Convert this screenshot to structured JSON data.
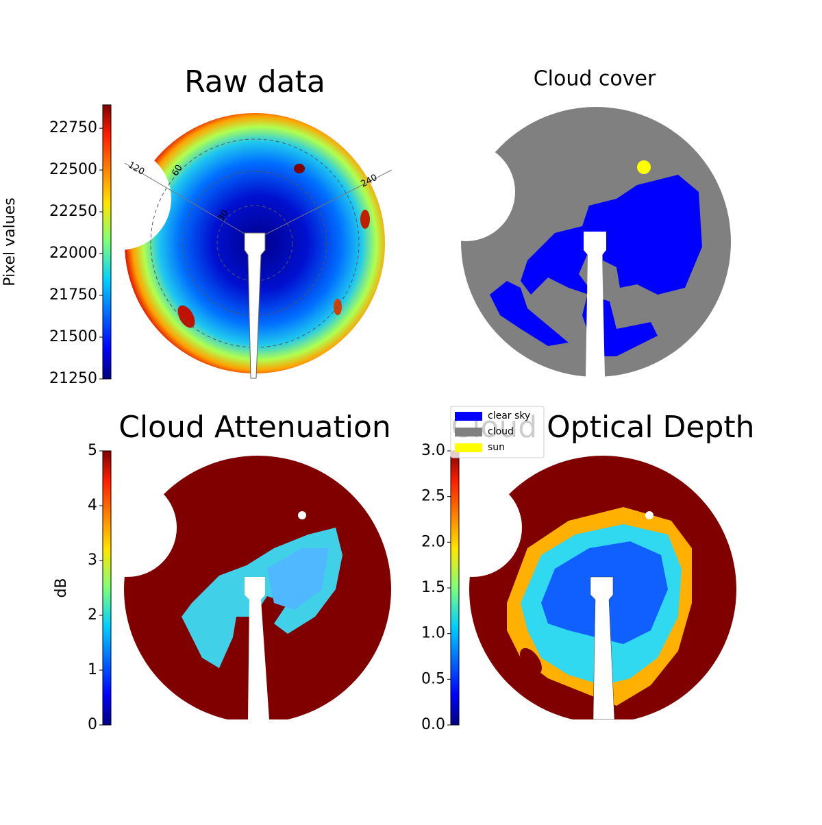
{
  "chart_data": [
    {
      "type": "image",
      "title": "Raw data",
      "ylabel": "Pixel values",
      "colormap": "jet",
      "ylim": [
        21250,
        22890
      ],
      "yticks": [
        21250,
        21500,
        21750,
        22000,
        22250,
        22500,
        22750
      ],
      "annotations": [
        "120",
        "60",
        "240",
        "30"
      ]
    },
    {
      "type": "image",
      "title": "Cloud cover",
      "legend": [
        {
          "name": "clear sky",
          "color": "#0000ff"
        },
        {
          "name": "cloud",
          "color": "#808080"
        },
        {
          "name": "sun",
          "color": "#ffff00"
        }
      ]
    },
    {
      "type": "image",
      "title": "Cloud Attenuation",
      "ylabel": "dB",
      "colormap": "jet",
      "ylim": [
        0,
        5
      ],
      "yticks": [
        0,
        1,
        2,
        3,
        4,
        5
      ]
    },
    {
      "type": "image",
      "title": "Cloud Optical Depth",
      "colormap": "jet",
      "ylim": [
        0,
        3
      ],
      "yticks": [
        {
          "value": 0,
          "label": "0.0"
        },
        {
          "value": 0.5,
          "label": "0.5"
        },
        {
          "value": 1,
          "label": "1.0"
        },
        {
          "value": 1.5,
          "label": "1.5"
        },
        {
          "value": 2,
          "label": "2.0"
        },
        {
          "value": 2.5,
          "label": "2.5"
        },
        {
          "value": 3,
          "label": "3.0"
        }
      ]
    }
  ]
}
